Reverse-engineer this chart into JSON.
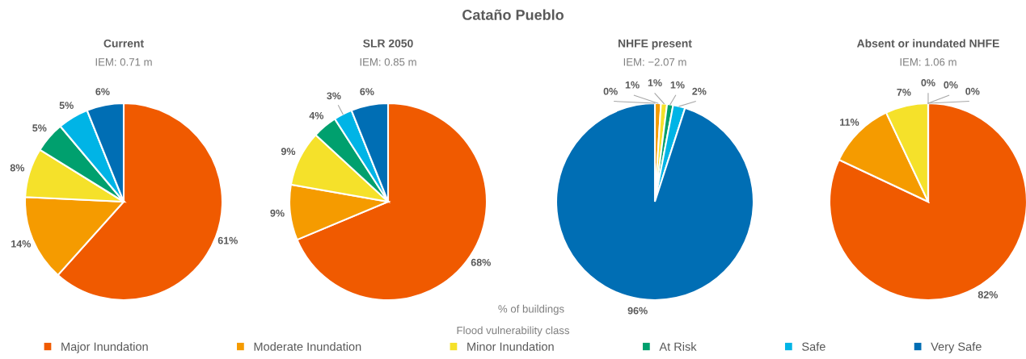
{
  "chart_data": [
    {
      "type": "pie",
      "title": "Current",
      "subtitle": "IEM: 0.71 m",
      "categories": [
        "Major Inundation",
        "Moderate Inundation",
        "Minor Inundation",
        "At Risk",
        "Safe",
        "Very Safe"
      ],
      "values": [
        61,
        14,
        8,
        5,
        5,
        6
      ],
      "value_labels": [
        "61%",
        "14%",
        "8%",
        "5%",
        "5%",
        "6%"
      ],
      "colors": [
        "#f05a00",
        "#f59b00",
        "#f5e12a",
        "#00a06e",
        "#00b4e6",
        "#006eb4"
      ],
      "legend": "bottom",
      "legend_title": "Flood vulnerability class",
      "annotations": [
        "Cataño Pueblo",
        "% of buildings"
      ]
    },
    {
      "type": "pie",
      "title": "SLR 2050",
      "subtitle": "IEM: 0.85 m",
      "categories": [
        null,
        null,
        null,
        null,
        null,
        null
      ],
      "values": [
        68,
        9,
        9,
        4,
        3,
        6
      ],
      "value_labels": [
        "68%",
        "9%",
        "9%",
        "4%",
        "3%",
        "6%"
      ],
      "colors": [
        "#f05a00",
        "#f59b00",
        "#f5e12a",
        "#00a06e",
        "#00b4e6",
        "#006eb4"
      ]
    },
    {
      "type": "pie",
      "title": "NHFE present",
      "subtitle": "IEM: −2.07 m",
      "categories": [
        null,
        null,
        null,
        null,
        null,
        null
      ],
      "values": [
        0,
        1,
        1,
        1,
        2,
        96
      ],
      "value_labels": [
        "0%",
        "1%",
        "1%",
        "1%",
        "2%",
        "96%"
      ],
      "colors": [
        "#f05a00",
        "#f59b00",
        "#f5e12a",
        "#00a06e",
        "#00b4e6",
        "#006eb4"
      ]
    },
    {
      "type": "pie",
      "title": "Absent or inundated NHFE",
      "subtitle": "IEM: 1.06 m",
      "categories": [
        null,
        null,
        null,
        null,
        null,
        null
      ],
      "values": [
        82,
        11,
        7,
        0,
        0,
        0
      ],
      "value_labels": [
        "82%",
        "11%",
        "7%",
        "0%",
        "0%",
        "0%"
      ],
      "colors": [
        "#f05a00",
        "#f59b00",
        "#f5e12a",
        "#00a06e",
        "#00b4e6",
        "#006eb4"
      ]
    }
  ]
}
